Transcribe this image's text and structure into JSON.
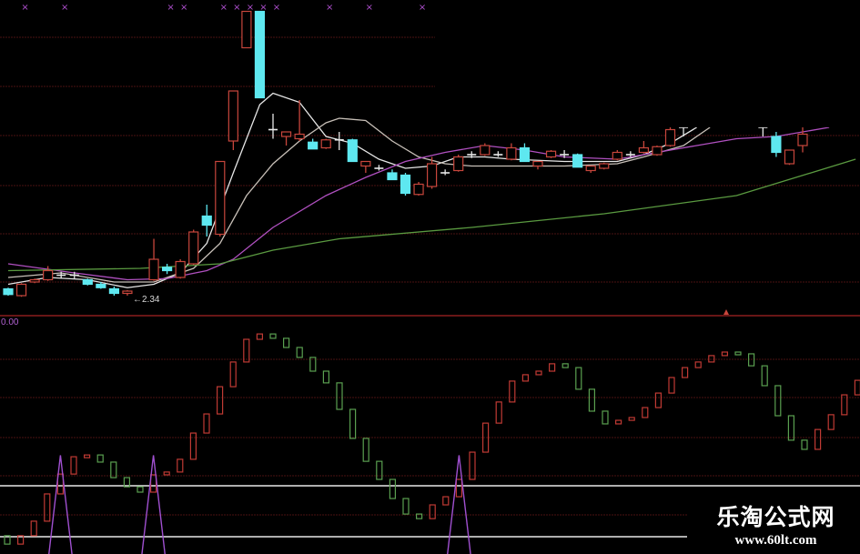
{
  "colors": {
    "background": "#000000",
    "up_candle": "#c8463c",
    "down_candle": "#5ee8f0",
    "doji": "#e8e8e8",
    "ma5": "#e6e6e6",
    "ma10": "#c8c0b8",
    "ma20": "#b050c0",
    "ma60": "#5a9a40",
    "grid": "#4a1212",
    "separator": "#8a1e1e",
    "ind_up": "#c03a34",
    "ind_down": "#5aa050",
    "signal": "#a050d0",
    "ref_line": "#e8e8e8",
    "marker": "#b050d0"
  },
  "chart_data": [
    {
      "type": "candlestick",
      "title": "",
      "low_annotation": "2.34",
      "annotation_arrow": "←",
      "grid": true,
      "candles": [
        {
          "i": 0,
          "o": 2.4,
          "h": 2.41,
          "l": 2.34,
          "c": 2.35
        },
        {
          "i": 1,
          "o": 2.34,
          "h": 2.45,
          "l": 2.33,
          "c": 2.44
        },
        {
          "i": 2,
          "o": 2.46,
          "h": 2.49,
          "l": 2.45,
          "c": 2.48
        },
        {
          "i": 3,
          "o": 2.48,
          "h": 2.6,
          "l": 2.47,
          "c": 2.56
        },
        {
          "i": 4,
          "o": 2.52,
          "h": 2.55,
          "l": 2.49,
          "c": 2.52
        },
        {
          "i": 5,
          "o": 2.52,
          "h": 2.55,
          "l": 2.49,
          "c": 2.52
        },
        {
          "i": 6,
          "o": 2.48,
          "h": 2.49,
          "l": 2.43,
          "c": 2.44
        },
        {
          "i": 7,
          "o": 2.44,
          "h": 2.46,
          "l": 2.4,
          "c": 2.41
        },
        {
          "i": 8,
          "o": 2.4,
          "h": 2.42,
          "l": 2.34,
          "c": 2.36
        },
        {
          "i": 9,
          "o": 2.36,
          "h": 2.39,
          "l": 2.34,
          "c": 2.38
        },
        {
          "i": 11,
          "o": 2.48,
          "h": 2.84,
          "l": 2.47,
          "c": 2.66
        },
        {
          "i": 12,
          "o": 2.59,
          "h": 2.62,
          "l": 2.53,
          "c": 2.56
        },
        {
          "i": 13,
          "o": 2.5,
          "h": 2.66,
          "l": 2.49,
          "c": 2.64
        },
        {
          "i": 14,
          "o": 2.62,
          "h": 2.92,
          "l": 2.61,
          "c": 2.9
        },
        {
          "i": 15,
          "o": 3.04,
          "h": 3.14,
          "l": 2.86,
          "c": 2.96
        },
        {
          "i": 16,
          "o": 2.88,
          "h": 3.52,
          "l": 2.86,
          "c": 3.52
        },
        {
          "i": 17,
          "o": 3.7,
          "h": 4.14,
          "l": 3.62,
          "c": 4.14
        },
        {
          "i": 18,
          "o": 4.52,
          "h": 4.84,
          "l": 4.52,
          "c": 4.84
        },
        {
          "i": 19,
          "o": 4.84,
          "h": 4.84,
          "l": 4.08,
          "c": 4.08
        },
        {
          "i": 20,
          "o": 3.8,
          "h": 3.94,
          "l": 3.72,
          "c": 3.8
        },
        {
          "i": 21,
          "o": 3.74,
          "h": 3.78,
          "l": 3.66,
          "c": 3.78
        },
        {
          "i": 22,
          "o": 3.72,
          "h": 4.06,
          "l": 3.7,
          "c": 3.76
        },
        {
          "i": 23,
          "o": 3.69,
          "h": 3.72,
          "l": 3.63,
          "c": 3.63
        },
        {
          "i": 24,
          "o": 3.64,
          "h": 3.72,
          "l": 3.63,
          "c": 3.71
        },
        {
          "i": 25,
          "o": 3.71,
          "h": 3.78,
          "l": 3.62,
          "c": 3.71
        },
        {
          "i": 26,
          "o": 3.71,
          "h": 3.72,
          "l": 3.52,
          "c": 3.52
        },
        {
          "i": 27,
          "o": 3.48,
          "h": 3.52,
          "l": 3.42,
          "c": 3.52
        },
        {
          "i": 28,
          "o": 3.46,
          "h": 3.49,
          "l": 3.44,
          "c": 3.46
        },
        {
          "i": 29,
          "o": 3.42,
          "h": 3.45,
          "l": 3.36,
          "c": 3.36
        },
        {
          "i": 30,
          "o": 3.4,
          "h": 3.42,
          "l": 3.22,
          "c": 3.24
        },
        {
          "i": 31,
          "o": 3.23,
          "h": 3.34,
          "l": 3.22,
          "c": 3.32
        },
        {
          "i": 32,
          "o": 3.3,
          "h": 3.56,
          "l": 3.28,
          "c": 3.5
        },
        {
          "i": 33,
          "o": 3.42,
          "h": 3.45,
          "l": 3.4,
          "c": 3.42
        },
        {
          "i": 34,
          "o": 3.44,
          "h": 3.58,
          "l": 3.43,
          "c": 3.56
        },
        {
          "i": 35,
          "o": 3.58,
          "h": 3.61,
          "l": 3.55,
          "c": 3.58
        },
        {
          "i": 36,
          "o": 3.58,
          "h": 3.68,
          "l": 3.57,
          "c": 3.66
        },
        {
          "i": 37,
          "o": 3.58,
          "h": 3.61,
          "l": 3.56,
          "c": 3.58
        },
        {
          "i": 38,
          "o": 3.54,
          "h": 3.68,
          "l": 3.53,
          "c": 3.64
        },
        {
          "i": 39,
          "o": 3.64,
          "h": 3.68,
          "l": 3.52,
          "c": 3.52
        },
        {
          "i": 40,
          "o": 3.48,
          "h": 3.52,
          "l": 3.45,
          "c": 3.52
        },
        {
          "i": 41,
          "o": 3.56,
          "h": 3.62,
          "l": 3.55,
          "c": 3.61
        },
        {
          "i": 42,
          "o": 3.58,
          "h": 3.62,
          "l": 3.55,
          "c": 3.58
        },
        {
          "i": 43,
          "o": 3.58,
          "h": 3.59,
          "l": 3.47,
          "c": 3.47
        },
        {
          "i": 44,
          "o": 3.44,
          "h": 3.48,
          "l": 3.42,
          "c": 3.48
        },
        {
          "i": 45,
          "o": 3.46,
          "h": 3.51,
          "l": 3.45,
          "c": 3.5
        },
        {
          "i": 46,
          "o": 3.54,
          "h": 3.62,
          "l": 3.53,
          "c": 3.6
        },
        {
          "i": 47,
          "o": 3.58,
          "h": 3.61,
          "l": 3.56,
          "c": 3.58
        },
        {
          "i": 48,
          "o": 3.6,
          "h": 3.7,
          "l": 3.59,
          "c": 3.64
        },
        {
          "i": 49,
          "o": 3.58,
          "h": 3.66,
          "l": 3.57,
          "c": 3.65
        },
        {
          "i": 50,
          "o": 3.66,
          "h": 3.82,
          "l": 3.65,
          "c": 3.8
        },
        {
          "i": 51,
          "o": 3.82,
          "h": 3.82,
          "l": 3.74,
          "c": 3.82
        },
        {
          "i": 57,
          "o": 3.82,
          "h": 3.82,
          "l": 3.74,
          "c": 3.82
        },
        {
          "i": 58,
          "o": 3.74,
          "h": 3.78,
          "l": 3.56,
          "c": 3.6
        },
        {
          "i": 59,
          "o": 3.5,
          "h": 3.62,
          "l": 3.49,
          "c": 3.62
        },
        {
          "i": 60,
          "o": 3.66,
          "h": 3.82,
          "l": 3.6,
          "c": 3.76
        }
      ],
      "moving_averages": [
        {
          "key": "ma5",
          "points": [
            [
              0,
              2.44
            ],
            [
              3,
              2.5
            ],
            [
              6,
              2.48
            ],
            [
              9,
              2.41
            ],
            [
              11,
              2.44
            ],
            [
              13,
              2.54
            ],
            [
              15,
              2.8
            ],
            [
              17,
              3.42
            ],
            [
              19,
              4.02
            ],
            [
              20,
              4.12
            ],
            [
              22,
              4.04
            ],
            [
              24,
              3.74
            ],
            [
              26,
              3.68
            ],
            [
              28,
              3.54
            ],
            [
              30,
              3.46
            ],
            [
              32,
              3.48
            ],
            [
              34,
              3.56
            ],
            [
              36,
              3.56
            ],
            [
              38,
              3.54
            ],
            [
              40,
              3.53
            ],
            [
              42,
              3.52
            ],
            [
              44,
              3.52
            ],
            [
              46,
              3.52
            ],
            [
              48,
              3.58
            ],
            [
              50,
              3.68
            ],
            [
              52,
              3.82
            ]
          ]
        },
        {
          "key": "ma10",
          "points": [
            [
              0,
              2.5
            ],
            [
              4,
              2.54
            ],
            [
              8,
              2.46
            ],
            [
              11,
              2.46
            ],
            [
              14,
              2.58
            ],
            [
              16,
              2.8
            ],
            [
              18,
              3.22
            ],
            [
              20,
              3.5
            ],
            [
              22,
              3.7
            ],
            [
              24,
              3.86
            ],
            [
              25,
              3.9
            ],
            [
              27,
              3.88
            ],
            [
              29,
              3.7
            ],
            [
              31,
              3.56
            ],
            [
              33,
              3.5
            ],
            [
              35,
              3.48
            ],
            [
              38,
              3.48
            ],
            [
              42,
              3.48
            ],
            [
              46,
              3.5
            ],
            [
              48,
              3.56
            ],
            [
              51,
              3.66
            ],
            [
              53,
              3.82
            ]
          ]
        },
        {
          "key": "ma20",
          "points": [
            [
              0,
              2.62
            ],
            [
              5,
              2.54
            ],
            [
              9,
              2.48
            ],
            [
              12,
              2.49
            ],
            [
              15,
              2.56
            ],
            [
              17,
              2.66
            ],
            [
              20,
              2.94
            ],
            [
              24,
              3.22
            ],
            [
              27,
              3.38
            ],
            [
              30,
              3.52
            ],
            [
              33,
              3.6
            ],
            [
              36,
              3.66
            ],
            [
              39,
              3.62
            ],
            [
              42,
              3.56
            ],
            [
              46,
              3.54
            ],
            [
              49,
              3.6
            ],
            [
              52,
              3.66
            ],
            [
              55,
              3.72
            ],
            [
              58,
              3.74
            ],
            [
              62,
              3.82
            ]
          ]
        },
        {
          "key": "ma60",
          "points": [
            [
              0,
              2.56
            ],
            [
              10,
              2.58
            ],
            [
              16,
              2.62
            ],
            [
              20,
              2.74
            ],
            [
              25,
              2.84
            ],
            [
              35,
              2.94
            ],
            [
              45,
              3.06
            ],
            [
              55,
              3.22
            ],
            [
              64,
              3.54
            ]
          ]
        }
      ],
      "signal_markers": [
        1,
        4,
        12,
        13,
        16,
        17,
        18,
        19,
        20,
        24,
        27,
        31
      ],
      "marker_glyph": "×"
    },
    {
      "type": "bar",
      "title": "",
      "value_label": "0.00",
      "reference_lines": [
        20,
        0
      ],
      "start_value": 0.4,
      "values": [
        -2.9,
        0.4,
        6.1,
        16.8,
        24.6,
        31.4,
        32.1,
        29.3,
        23.2,
        19.6,
        17.5,
        24.3,
        25.4,
        30.4,
        40.7,
        48.2,
        58.9,
        68.6,
        77.5,
        79.6,
        77.9,
        74.3,
        70.4,
        65.0,
        60.4,
        50.0,
        38.6,
        29.6,
        22.5,
        15.0,
        8.9,
        7.1,
        12.5,
        15.7,
        22.5,
        33.2,
        44.6,
        52.9,
        61.1,
        63.6,
        65.0,
        67.9,
        66.4,
        57.9,
        49.3,
        44.3,
        45.7,
        46.8,
        50.7,
        56.4,
        62.5,
        66.4,
        68.6,
        71.1,
        72.5,
        71.8,
        67.1,
        59.3,
        47.5,
        37.9,
        34.3,
        42.1,
        47.9,
        55.7,
        61.4
      ],
      "signal_spikes": {
        "indices": [
          4,
          11,
          34
        ],
        "height": 32
      }
    }
  ],
  "watermark": {
    "line1": "乐淘公式网",
    "line2": "www.60lt.com"
  }
}
